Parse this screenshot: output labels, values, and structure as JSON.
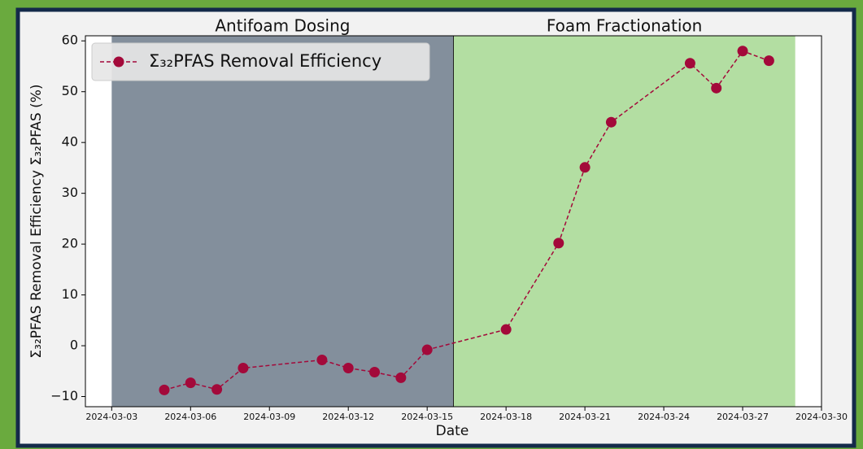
{
  "chart_data": {
    "type": "line",
    "x_label": "Date",
    "y_label": "Σ₃₂PFAS Removal Efficiency Σ₃₂PFAS (%)",
    "x": [
      "2024-03-05",
      "2024-03-06",
      "2024-03-07",
      "2024-03-08",
      "2024-03-11",
      "2024-03-12",
      "2024-03-13",
      "2024-03-14",
      "2024-03-15",
      "2024-03-18",
      "2024-03-20",
      "2024-03-21",
      "2024-03-22",
      "2024-03-25",
      "2024-03-26",
      "2024-03-27",
      "2024-03-28"
    ],
    "series": [
      {
        "name": "Σ₃₂PFAS Removal Efficiency",
        "color": "#a3093a",
        "values": [
          -8.7,
          -7.3,
          -8.6,
          -4.4,
          -2.8,
          -4.4,
          -5.2,
          -6.3,
          -0.8,
          3.2,
          20.2,
          35.1,
          44.0,
          55.6,
          50.7,
          58.0,
          56.1
        ]
      }
    ],
    "spans": [
      {
        "label": "Antifoam Dosing",
        "start": "2024-03-03",
        "end": "2024-03-16",
        "color": "#838f9c"
      },
      {
        "label": "Foam Fractionation",
        "start": "2024-03-16",
        "end": "2024-03-29",
        "color": "#b3dea2"
      }
    ],
    "xlim": [
      "2024-03-02",
      "2024-03-30"
    ],
    "xticks": [
      "2024-03-03",
      "2024-03-06",
      "2024-03-09",
      "2024-03-12",
      "2024-03-15",
      "2024-03-18",
      "2024-03-21",
      "2024-03-24",
      "2024-03-27",
      "2024-03-30"
    ],
    "ylim": [
      -12,
      61
    ],
    "yticks": [
      {
        "value": -10,
        "label": "−10"
      },
      0,
      10,
      20,
      30,
      40,
      50,
      60
    ],
    "legend": "upper left"
  }
}
